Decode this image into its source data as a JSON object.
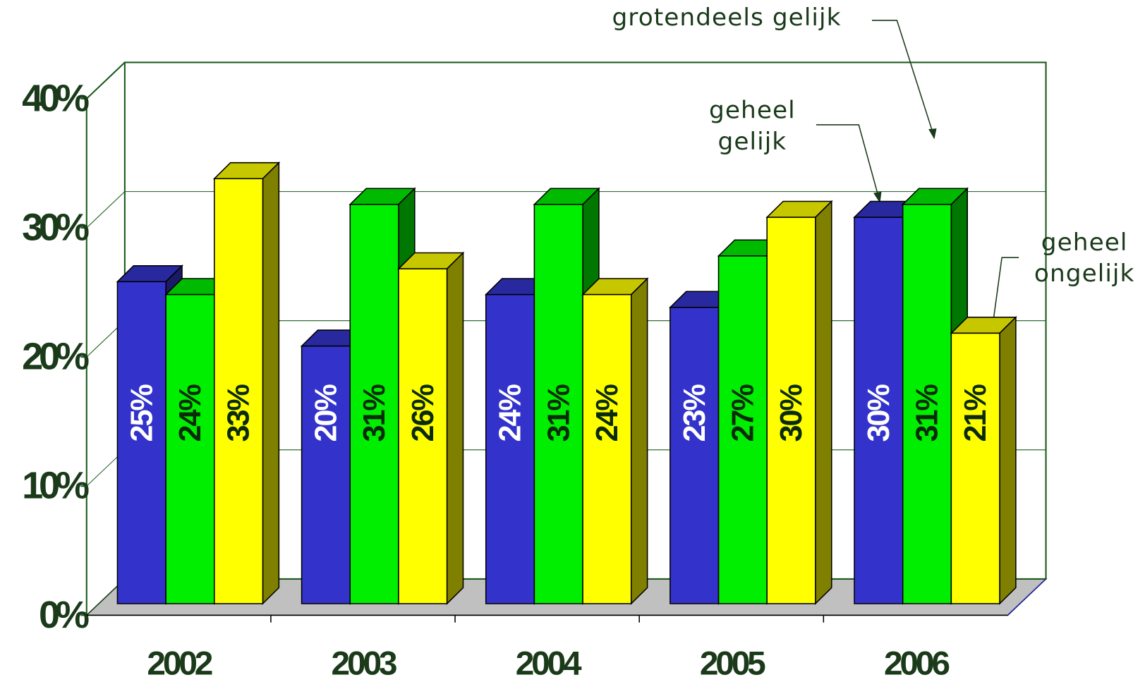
{
  "chart_data": {
    "type": "bar3d",
    "categories": [
      "2002",
      "2003",
      "2004",
      "2005",
      "2006"
    ],
    "series": [
      {
        "name": "geheel gelijk",
        "color": "#3333cc",
        "values": [
          25,
          20,
          24,
          23,
          30
        ],
        "value_labels": [
          "25%",
          "20%",
          "24%",
          "23%",
          "30%"
        ]
      },
      {
        "name": "grotendeels gelijk",
        "color": "#00ee00",
        "values": [
          24,
          31,
          31,
          27,
          31
        ],
        "value_labels": [
          "24%",
          "31%",
          "31%",
          "27%",
          "31%"
        ]
      },
      {
        "name": "geheel ongelijk",
        "color": "#ffff00",
        "values": [
          33,
          26,
          24,
          30,
          21
        ],
        "value_labels": [
          "33%",
          "26%",
          "24%",
          "30%",
          "21%"
        ]
      }
    ],
    "ylim": [
      0,
      40
    ],
    "yticks": [
      {
        "value": 0,
        "label": "0%"
      },
      {
        "value": 10,
        "label": "10%"
      },
      {
        "value": 20,
        "label": "20%"
      },
      {
        "value": 30,
        "label": "30%"
      },
      {
        "value": 40,
        "label": "40%"
      }
    ],
    "grid": true
  }
}
